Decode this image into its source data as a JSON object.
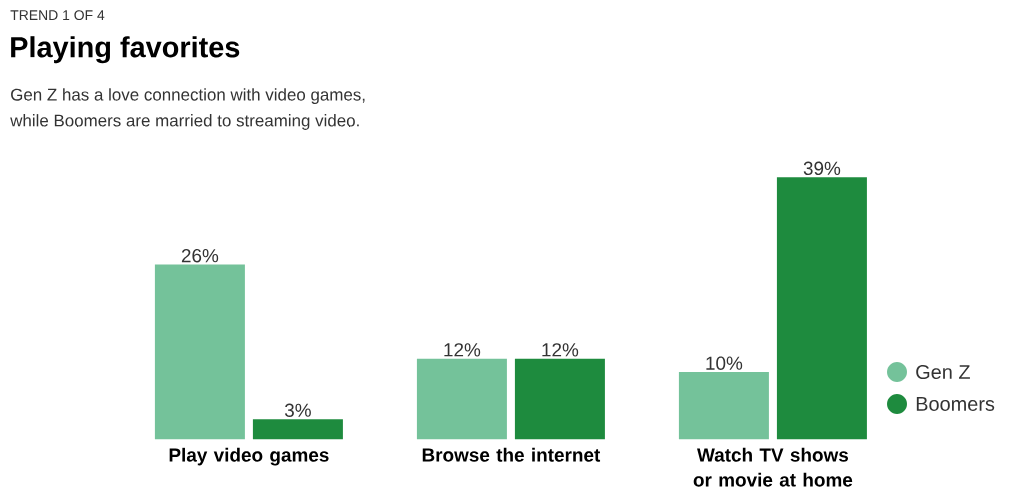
{
  "chart_data": {
    "type": "bar",
    "title": "Playing favorites",
    "subtitle": "Gen Z has a love connection with video games,\nwhile Boomers are married to streaming video.",
    "annotations": [
      "TREND 1 OF 4"
    ],
    "categories": [
      "Play video games",
      "Browse the internet",
      "Watch TV shows or movie at home"
    ],
    "series": [
      {
        "name": "Gen Z",
        "color": "#74c29a",
        "values": [
          26,
          12,
          10
        ],
        "value_labels": [
          "26%",
          "12%",
          "10%"
        ]
      },
      {
        "name": "Boomers",
        "color": "#1e8b3e",
        "values": [
          3,
          12,
          39
        ],
        "value_labels": [
          "3%",
          "12%",
          "39%"
        ]
      }
    ],
    "legend": "right"
  }
}
